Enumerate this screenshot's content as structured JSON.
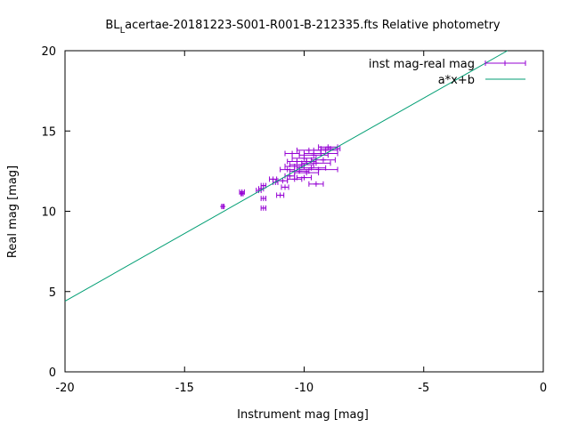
{
  "chart_data": {
    "type": "scatter",
    "title": "BL Lacertae-20181223-S001-R001-B-212335.fts Relative photometry",
    "title_parts": {
      "main1": "BL",
      "subscript": "L",
      "main2": "acertae-20181223-S001-R001-B-212335.fts Relative photometry"
    },
    "xlabel": "Instrument mag [mag]",
    "ylabel": "Real mag [mag]",
    "xlim": [
      -20,
      0
    ],
    "ylim": [
      0,
      20
    ],
    "xticks": [
      -20,
      -15,
      -10,
      -5,
      0
    ],
    "xtick_labels": [
      "-20",
      "-15",
      "-10",
      "-5",
      "0"
    ],
    "yticks": [
      0,
      5,
      10,
      15,
      20
    ],
    "ytick_labels": [
      "0",
      "5",
      "10",
      "15",
      "20"
    ],
    "grid": false,
    "legend_position": "top-right",
    "series": [
      {
        "name": "inst mag-real mag",
        "kind": "points-with-xerror",
        "color": "#9400d3",
        "points": [
          {
            "x": -13.4,
            "y": 10.3,
            "xerr": 0.05
          },
          {
            "x": -12.6,
            "y": 11.2,
            "xerr": 0.1
          },
          {
            "x": -12.6,
            "y": 11.1,
            "xerr": 0.05
          },
          {
            "x": -11.9,
            "y": 11.3,
            "xerr": 0.1
          },
          {
            "x": -11.8,
            "y": 11.4,
            "xerr": 0.1
          },
          {
            "x": -11.7,
            "y": 11.6,
            "xerr": 0.1
          },
          {
            "x": -11.7,
            "y": 10.8,
            "xerr": 0.1
          },
          {
            "x": -11.7,
            "y": 10.2,
            "xerr": 0.1
          },
          {
            "x": -11.3,
            "y": 12.0,
            "xerr": 0.15
          },
          {
            "x": -11.2,
            "y": 11.8,
            "xerr": 0.1
          },
          {
            "x": -11.0,
            "y": 11.0,
            "xerr": 0.15
          },
          {
            "x": -10.8,
            "y": 11.5,
            "xerr": 0.15
          },
          {
            "x": -10.9,
            "y": 11.9,
            "xerr": 0.2
          },
          {
            "x": -10.7,
            "y": 12.6,
            "xerr": 0.3
          },
          {
            "x": -10.6,
            "y": 12.2,
            "xerr": 0.2
          },
          {
            "x": -10.5,
            "y": 13.6,
            "xerr": 0.3
          },
          {
            "x": -10.4,
            "y": 12.8,
            "xerr": 0.4
          },
          {
            "x": -10.4,
            "y": 12.0,
            "xerr": 0.3
          },
          {
            "x": -10.3,
            "y": 13.1,
            "xerr": 0.4
          },
          {
            "x": -10.2,
            "y": 12.5,
            "xerr": 0.4
          },
          {
            "x": -10.1,
            "y": 12.9,
            "xerr": 0.5
          },
          {
            "x": -10.0,
            "y": 13.3,
            "xerr": 0.5
          },
          {
            "x": -9.9,
            "y": 12.4,
            "xerr": 0.5
          },
          {
            "x": -9.8,
            "y": 13.8,
            "xerr": 0.5
          },
          {
            "x": -9.7,
            "y": 12.7,
            "xerr": 0.6
          },
          {
            "x": -9.6,
            "y": 13.5,
            "xerr": 0.6
          },
          {
            "x": -9.5,
            "y": 13.0,
            "xerr": 0.6
          },
          {
            "x": -9.4,
            "y": 12.6,
            "xerr": 0.8
          },
          {
            "x": -9.3,
            "y": 13.6,
            "xerr": 0.7
          },
          {
            "x": -9.2,
            "y": 13.2,
            "xerr": 0.5
          },
          {
            "x": -9.1,
            "y": 13.8,
            "xerr": 0.5
          },
          {
            "x": -9.0,
            "y": 14.0,
            "xerr": 0.4
          },
          {
            "x": -9.5,
            "y": 11.7,
            "xerr": 0.3
          },
          {
            "x": -8.9,
            "y": 13.9,
            "xerr": 0.4
          },
          {
            "x": -9.9,
            "y": 13.1,
            "xerr": 0.4
          },
          {
            "x": -10.0,
            "y": 12.1,
            "xerr": 0.3
          }
        ]
      },
      {
        "name": "a*x+b",
        "kind": "line",
        "color": "#009e73",
        "points": [
          {
            "x": -20,
            "y": 4.4
          },
          {
            "x": -1.5,
            "y": 20.0
          }
        ]
      }
    ]
  }
}
